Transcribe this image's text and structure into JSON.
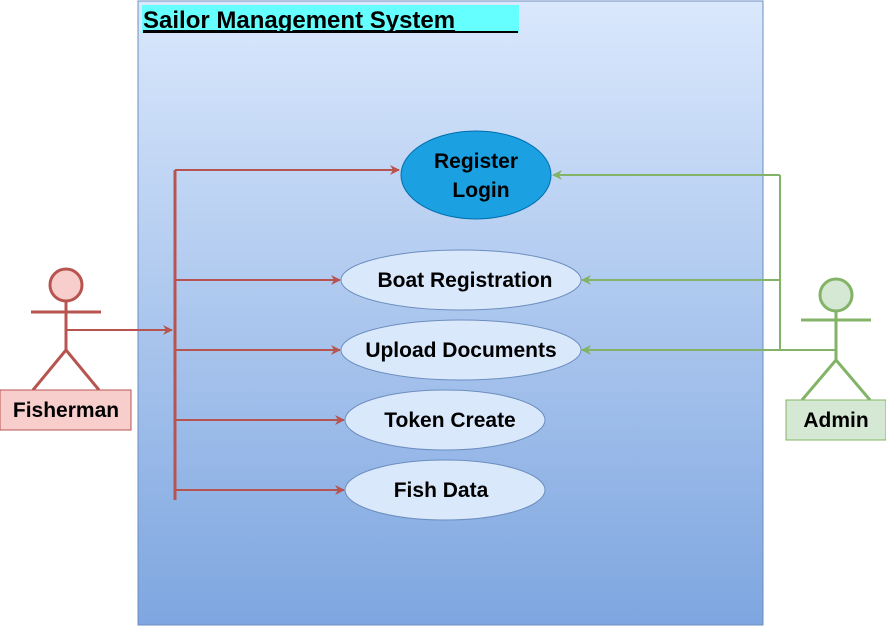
{
  "system": {
    "title": "Sailor Management System"
  },
  "actors": {
    "fisherman": {
      "label": "Fisherman"
    },
    "admin": {
      "label": "Admin"
    }
  },
  "use_cases": {
    "register_login": {
      "line1": "Register",
      "line2": "Login"
    },
    "boat_registration": {
      "label": "Boat Registration"
    },
    "upload_documents": {
      "label": "Upload Documents"
    },
    "token_create": {
      "label": "Token Create"
    },
    "fish_data": {
      "label": "Fish Data"
    }
  },
  "colors": {
    "fisherman_line": "#b85450",
    "fisherman_fill": "#f8cecc",
    "admin_line": "#82b366",
    "admin_fill": "#d5e8d4",
    "usecase_fill": "#dae8fc",
    "usecase_stroke": "#6c8ebf",
    "highlight_usecase_fill": "#1ba1e2",
    "highlight_usecase_stroke": "#006eaf",
    "system_gradient_top": "#dae8fc",
    "system_gradient_bottom": "#7ea6e0",
    "title_highlight": "#66ffff"
  }
}
